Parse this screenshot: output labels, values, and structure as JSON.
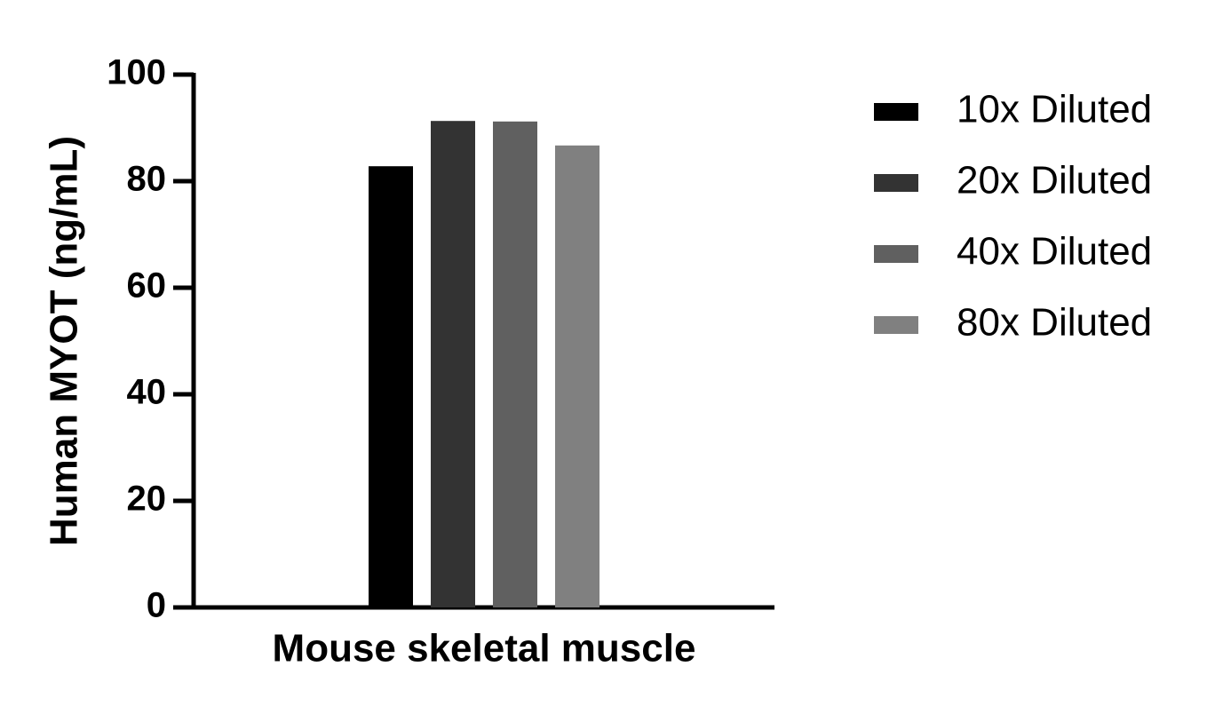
{
  "chart_data": {
    "type": "bar",
    "ylabel": "Human MYOT (ng/mL)",
    "categories": [
      "Mouse skeletal muscle"
    ],
    "series": [
      {
        "name": "10x Diluted",
        "color": "#000000",
        "values": [
          82.8
        ]
      },
      {
        "name": "20x Diluted",
        "color": "#333333",
        "values": [
          91.3
        ]
      },
      {
        "name": "40x Diluted",
        "color": "#606060",
        "values": [
          91.2
        ]
      },
      {
        "name": "80x Diluted",
        "color": "#808080",
        "values": [
          86.7
        ]
      }
    ],
    "ylim": [
      0,
      100
    ],
    "yticks": [
      0,
      20,
      40,
      60,
      80,
      100
    ],
    "grid": false,
    "legend": "right"
  }
}
